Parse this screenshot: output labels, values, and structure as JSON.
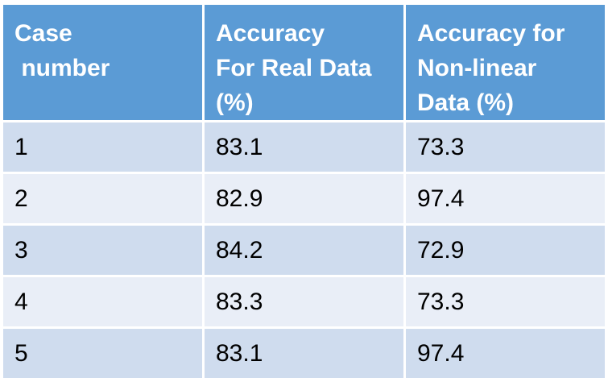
{
  "table": {
    "headers": [
      [
        "Case",
        " number"
      ],
      [
        "Accuracy",
        "For Real Data",
        "(%)"
      ],
      [
        "Accuracy for",
        "Non-linear",
        "Data (%)"
      ]
    ],
    "rows": [
      [
        "1",
        "83.1",
        "73.3"
      ],
      [
        "2",
        "82.9",
        "97.4"
      ],
      [
        "3",
        "84.2",
        "72.9"
      ],
      [
        "4",
        "83.3",
        "73.3"
      ],
      [
        "5",
        "83.1",
        "97.4"
      ]
    ]
  },
  "colors": {
    "header_bg": "#5b9bd5",
    "row_odd_bg": "#cfdcee",
    "row_even_bg": "#e9eef7",
    "header_text": "#ffffff"
  }
}
